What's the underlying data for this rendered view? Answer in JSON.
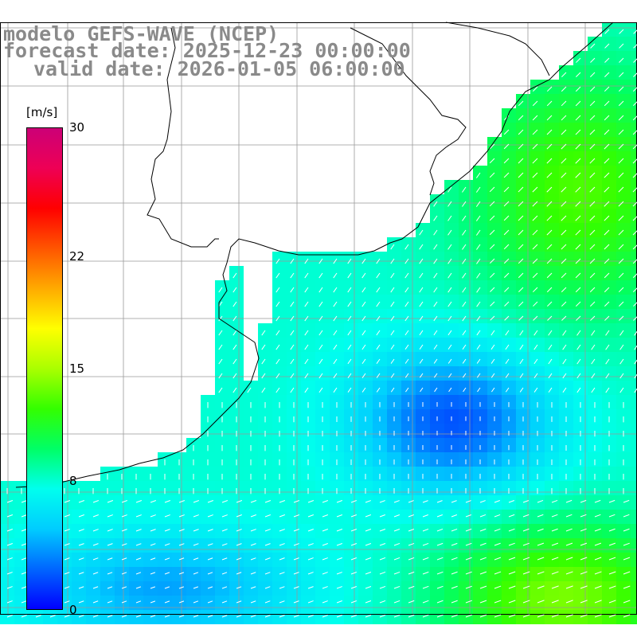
{
  "titles": {
    "model": "modelo GEFS-WAVE (NCEP)",
    "forecast": "forecast date: 2025-12-23 00:00:00",
    "valid": "valid date: 2026-01-05 06:00:00"
  },
  "colorbar": {
    "unit": "[m/s]",
    "ticks": [
      {
        "label": "30",
        "value": 30
      },
      {
        "label": "22",
        "value": 22
      },
      {
        "label": "15",
        "value": 15
      },
      {
        "label": "8",
        "value": 8
      },
      {
        "label": "0",
        "value": 0
      }
    ],
    "colors": [
      "#0000ff",
      "#0066ff",
      "#00ccff",
      "#00ffee",
      "#00ff66",
      "#33ff00",
      "#aaff00",
      "#ffff00",
      "#ffaa00",
      "#ff5500",
      "#ff0000",
      "#ee0055",
      "#cc0077"
    ]
  },
  "map": {
    "variable": "wind speed (m/s) with wind direction arrows",
    "land_color": "#ffffff",
    "grid_color": "#999999",
    "coast_color": "#000000",
    "arrow_color": "#ffffff"
  }
}
